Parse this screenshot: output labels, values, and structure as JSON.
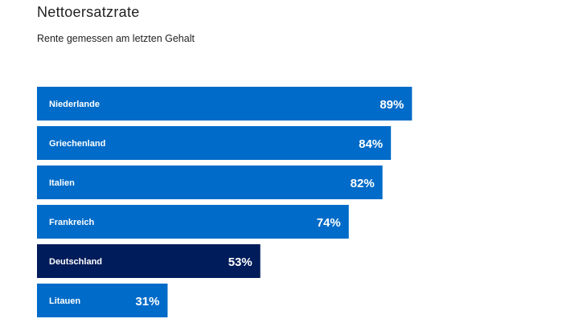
{
  "chart_data": {
    "type": "bar",
    "orientation": "horizontal",
    "title": "Nettoersatzrate",
    "subtitle": "Rente gemessen am letzten Gehalt",
    "categories": [
      "Niederlande",
      "Griechenland",
      "Italien",
      "Frankreich",
      "Deutschland",
      "Litauen"
    ],
    "values": [
      89,
      84,
      82,
      74,
      53,
      31
    ],
    "value_labels": [
      "89%",
      "84%",
      "82%",
      "74%",
      "53%",
      "31%"
    ],
    "unit": "%",
    "xlim": [
      0,
      100
    ],
    "highlight": "Deutschland",
    "colors": {
      "default": "#006bc8",
      "highlight": "#001c5a",
      "text": "#ffffff"
    }
  }
}
